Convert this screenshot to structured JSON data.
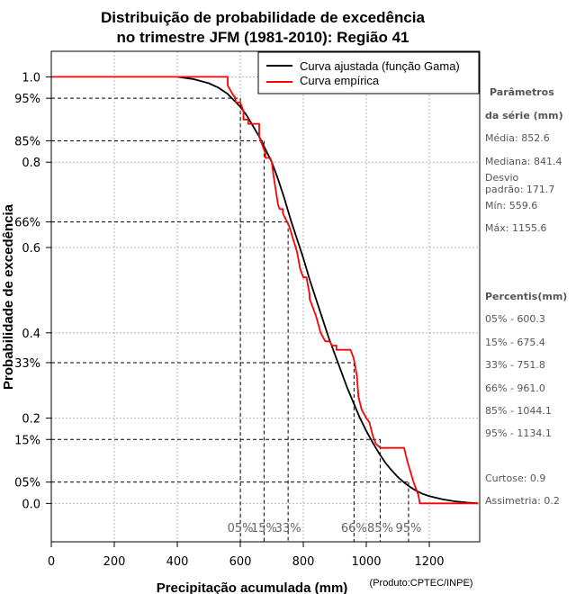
{
  "chart_data": {
    "type": "line",
    "title": "Distribuição de probabilidade de excedência",
    "subtitle": "no trimestre JFM (1981-2010): Região 41",
    "xlabel": "Precipitação acumulada (mm)",
    "ylabel": "Probabilidade de excedência",
    "xlim": [
      0,
      1360
    ],
    "ylim": [
      -0.09,
      1.06
    ],
    "grid": true,
    "x_ticks": [
      0,
      200,
      400,
      600,
      800,
      1000,
      1200
    ],
    "x_tick_labels": [
      "0",
      "200",
      "400",
      "600",
      "800",
      "1000",
      "1200"
    ],
    "y_ticks": [
      0.0,
      0.2,
      0.4,
      0.6,
      0.8,
      1.0
    ],
    "y_tick_labels": [
      "0.0",
      "0.2",
      "0.4",
      "0.6",
      "0.8",
      "1.0"
    ],
    "y_percent_ticks": [
      0.05,
      0.15,
      0.33,
      0.66,
      0.85,
      0.95
    ],
    "y_percent_labels": [
      "05%",
      "15%",
      "33%",
      "66%",
      "85%",
      "95%"
    ],
    "legend": {
      "position": "top-right",
      "entries": [
        {
          "label": "Curva ajustada (função Gama)",
          "color": "#000000"
        },
        {
          "label": "Curva empírica",
          "color": "#ff0000"
        }
      ]
    },
    "series": [
      {
        "name": "Curva ajustada (função Gama)",
        "color": "#000000",
        "x": [
          400,
          450,
          500,
          530,
          560,
          580,
          600,
          620,
          640,
          660,
          680,
          700,
          720,
          740,
          760,
          780,
          800,
          820,
          840,
          860,
          880,
          900,
          920,
          940,
          960,
          980,
          1000,
          1020,
          1040,
          1060,
          1080,
          1100,
          1120,
          1140,
          1160,
          1180,
          1200,
          1240,
          1280,
          1320,
          1355
        ],
        "y": [
          1.0,
          0.995,
          0.985,
          0.975,
          0.96,
          0.945,
          0.93,
          0.91,
          0.885,
          0.86,
          0.83,
          0.8,
          0.76,
          0.715,
          0.665,
          0.62,
          0.575,
          0.525,
          0.48,
          0.435,
          0.39,
          0.35,
          0.31,
          0.27,
          0.235,
          0.2,
          0.17,
          0.143,
          0.118,
          0.096,
          0.078,
          0.062,
          0.049,
          0.038,
          0.029,
          0.022,
          0.017,
          0.01,
          0.005,
          0.002,
          0.0
        ]
      },
      {
        "name": "Curva empírica",
        "color": "#ff0000",
        "x": [
          0,
          560,
          560,
          575,
          585,
          585,
          600,
          610,
          610,
          625,
          625,
          660,
          660,
          680,
          680,
          695,
          700,
          705,
          720,
          725,
          735,
          735,
          755,
          780,
          790,
          800,
          810,
          820,
          820,
          830,
          840,
          855,
          870,
          870,
          885,
          890,
          905,
          905,
          950,
          960,
          970,
          975,
          985,
          1000,
          1010,
          1020,
          1030,
          1045,
          1080,
          1120,
          1130,
          1150,
          1165,
          1170,
          1355
        ],
        "y": [
          1.0,
          1.0,
          0.98,
          0.96,
          0.95,
          0.94,
          0.94,
          0.92,
          0.9,
          0.9,
          0.89,
          0.89,
          0.86,
          0.82,
          0.81,
          0.81,
          0.8,
          0.77,
          0.7,
          0.69,
          0.69,
          0.68,
          0.65,
          0.59,
          0.55,
          0.53,
          0.53,
          0.49,
          0.48,
          0.46,
          0.44,
          0.4,
          0.38,
          0.38,
          0.38,
          0.37,
          0.37,
          0.36,
          0.36,
          0.34,
          0.3,
          0.25,
          0.22,
          0.2,
          0.19,
          0.16,
          0.14,
          0.13,
          0.13,
          0.13,
          0.1,
          0.05,
          0.02,
          0.0,
          0.0
        ]
      }
    ],
    "percentile_lines": [
      {
        "label": "05%",
        "x": 600.3,
        "p": 0.95
      },
      {
        "label": "15%",
        "x": 675.4,
        "p": 0.85
      },
      {
        "label": "33%",
        "x": 751.8,
        "p": 0.66
      },
      {
        "label": "66%",
        "x": 961.0,
        "p": 0.33
      },
      {
        "label": "85%",
        "x": 1044.1,
        "p": 0.15
      },
      {
        "label": "95%",
        "x": 1134.1,
        "p": 0.05
      }
    ]
  },
  "sidebar": {
    "params_heading_1": "Parâmetros",
    "params_heading_2": "da série (mm)",
    "stats": [
      "Média: 852.6",
      "Mediana: 841.4",
      "Desvio",
      "padrão: 171.7",
      "Mín: 559.6",
      "Máx: 1155.6"
    ],
    "percentis_heading": "Percentis(mm)",
    "percentis": [
      "05% - 600.3",
      "15% - 675.4",
      "33% - 751.8",
      "66% - 961.0",
      "85% - 1044.1",
      "95% - 1134.1"
    ],
    "curtose": "Curtose: 0.9",
    "assimetria": "Assimetria: 0.2"
  },
  "credit": "(Produto:CPTEC/INPE)"
}
